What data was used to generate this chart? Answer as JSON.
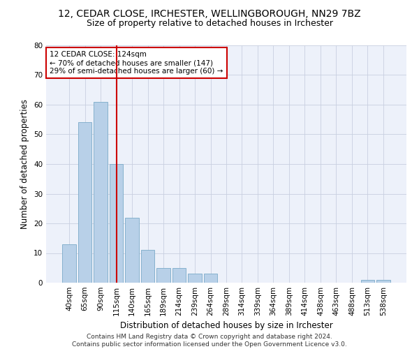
{
  "title_line1": "12, CEDAR CLOSE, IRCHESTER, WELLINGBOROUGH, NN29 7BZ",
  "title_line2": "Size of property relative to detached houses in Irchester",
  "xlabel": "Distribution of detached houses by size in Irchester",
  "ylabel": "Number of detached properties",
  "categories": [
    "40sqm",
    "65sqm",
    "90sqm",
    "115sqm",
    "140sqm",
    "165sqm",
    "189sqm",
    "214sqm",
    "239sqm",
    "264sqm",
    "289sqm",
    "314sqm",
    "339sqm",
    "364sqm",
    "389sqm",
    "414sqm",
    "438sqm",
    "463sqm",
    "488sqm",
    "513sqm",
    "538sqm"
  ],
  "values": [
    13,
    54,
    61,
    40,
    22,
    11,
    5,
    5,
    3,
    3,
    0,
    0,
    0,
    0,
    0,
    0,
    0,
    0,
    0,
    1,
    1
  ],
  "bar_color": "#b8d0e8",
  "bar_edge_color": "#7aaac8",
  "vline_x": 3.0,
  "vline_color": "#cc0000",
  "annotation_text": "12 CEDAR CLOSE: 124sqm\n← 70% of detached houses are smaller (147)\n29% of semi-detached houses are larger (60) →",
  "annotation_box_color": "#ffffff",
  "annotation_box_edge_color": "#cc0000",
  "ylim": [
    0,
    80
  ],
  "yticks": [
    0,
    10,
    20,
    30,
    40,
    50,
    60,
    70,
    80
  ],
  "footer": "Contains HM Land Registry data © Crown copyright and database right 2024.\nContains public sector information licensed under the Open Government Licence v3.0.",
  "bg_color": "#edf1fa",
  "grid_color": "#c8cfe0",
  "title_fontsize": 10,
  "subtitle_fontsize": 9,
  "label_fontsize": 8.5,
  "tick_fontsize": 7.5,
  "annotation_fontsize": 7.5,
  "footer_fontsize": 6.5
}
